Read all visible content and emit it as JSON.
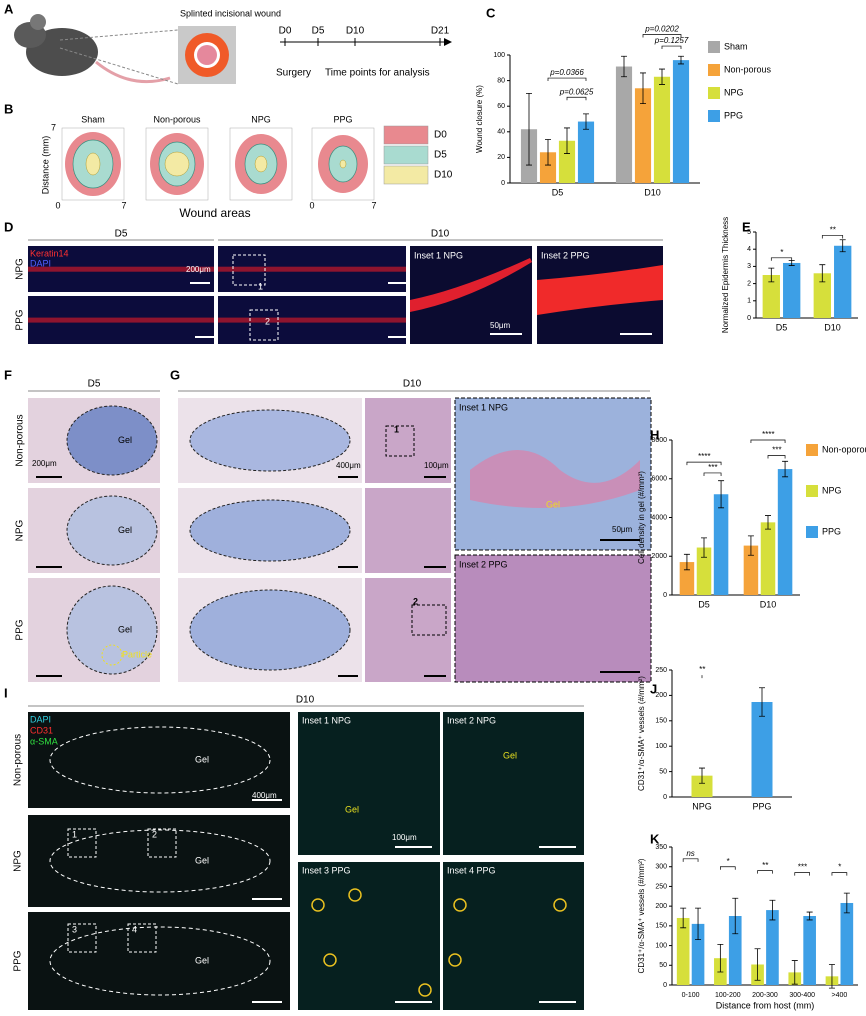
{
  "panel_labels": [
    "A",
    "B",
    "C",
    "D",
    "E",
    "F",
    "G",
    "H",
    "I",
    "J",
    "K"
  ],
  "panel_a": {
    "wound_label": "Splinted incisional wound",
    "timeline": [
      "D0",
      "D5",
      "D10",
      "D21"
    ],
    "surgery": "Surgery",
    "analysis": "Time points for analysis"
  },
  "panel_b": {
    "groups": [
      "Sham",
      "Non-porous",
      "NPG",
      "PPG"
    ],
    "y_label": "Distance (mm)",
    "x_label": "Wound areas",
    "axis_ticks": [
      0,
      7
    ],
    "legend": [
      "D0",
      "D5",
      "D10"
    ]
  },
  "panel_d": {
    "days": [
      "D5",
      "D10"
    ],
    "stains": [
      "Keratin14",
      "DAPI"
    ],
    "rows": [
      "NPG",
      "PPG"
    ],
    "boxes": [
      "1",
      "2"
    ],
    "insets": [
      "Inset 1  NPG",
      "Inset 2   PPG"
    ],
    "scale_bars": [
      "200μm",
      "50μm"
    ]
  },
  "panel_f": {
    "day": "D5",
    "rows": [
      "Non-porous",
      "NPG",
      "PPG"
    ],
    "gel": "Gel",
    "particle": "Particle",
    "scale_bar": "200μm"
  },
  "panel_g": {
    "day": "D10",
    "scale_bars": [
      "400μm",
      "100μm",
      "50μm"
    ],
    "insets": [
      "Inset 1  NPG",
      "Inset 2  PPG"
    ],
    "gel": "Gel",
    "boxes": [
      "1",
      "2"
    ]
  },
  "panel_i": {
    "day": "D10",
    "stains": [
      "DAPI",
      "CD31",
      "α-SMA"
    ],
    "rows": [
      "Non-porous",
      "NPG",
      "PPG"
    ],
    "gel": "Gel",
    "boxes": [
      "1",
      "2",
      "3",
      "4"
    ],
    "insets": [
      "Inset 1  NPG",
      "Inset 2  NPG",
      "Inset 3  PPG",
      "Inset 4  PPG"
    ],
    "scale_bars": [
      "400μm",
      "100μm"
    ]
  },
  "chart_data": [
    {
      "type": "bar",
      "y_label": "Wound closure (%)",
      "categories": [
        "D5",
        "D10"
      ],
      "series": [
        {
          "name": "Sham",
          "color": "#a8a8a8",
          "values": [
            42,
            91
          ],
          "errors": [
            28,
            8
          ]
        },
        {
          "name": "Non-porous",
          "color": "#f5a33a",
          "values": [
            24,
            74
          ],
          "errors": [
            10,
            12
          ]
        },
        {
          "name": "NPG",
          "color": "#d6df3b",
          "values": [
            33,
            83
          ],
          "errors": [
            10,
            6
          ]
        },
        {
          "name": "PPG",
          "color": "#3d9fe6",
          "values": [
            48,
            96
          ],
          "errors": [
            6,
            3
          ]
        }
      ],
      "ylim": [
        0,
        100
      ],
      "yticks": [
        0,
        20,
        40,
        60,
        80,
        100
      ],
      "legend": "right",
      "annotations": [
        "p=0.0366",
        "p=0.0625",
        "p=0.0202",
        "p=0.1257"
      ]
    },
    {
      "type": "bar",
      "y_label": "Normalized Epidermis Thickness",
      "categories": [
        "D5",
        "D10"
      ],
      "series": [
        {
          "name": "NPG",
          "color": "#d6df3b",
          "values": [
            2.5,
            2.6
          ],
          "errors": [
            0.4,
            0.5
          ]
        },
        {
          "name": "PPG",
          "color": "#3d9fe6",
          "values": [
            3.2,
            4.2
          ],
          "errors": [
            0.15,
            0.35
          ]
        }
      ],
      "ylim": [
        0,
        5
      ],
      "yticks": [
        0,
        1,
        2,
        3,
        4,
        5
      ],
      "annotations": [
        "*",
        "**"
      ]
    },
    {
      "type": "bar",
      "y_label": "Cell density in gel (#/mm²)",
      "categories": [
        "D5",
        "D10"
      ],
      "series": [
        {
          "name": "Non-oporous",
          "color": "#f5a33a",
          "values": [
            1700,
            2550
          ],
          "errors": [
            400,
            500
          ]
        },
        {
          "name": "NPG",
          "color": "#d6df3b",
          "values": [
            2450,
            3750
          ],
          "errors": [
            500,
            350
          ]
        },
        {
          "name": "PPG",
          "color": "#3d9fe6",
          "values": [
            5200,
            6500
          ],
          "errors": [
            700,
            400
          ]
        }
      ],
      "ylim": [
        0,
        8000
      ],
      "yticks": [
        0,
        2000,
        4000,
        6000,
        8000
      ],
      "legend": "right",
      "annotations": [
        "****",
        "***",
        "****",
        "***"
      ]
    },
    {
      "type": "bar",
      "y_label": "CD31⁺/α-SMA⁺ vessels (#/mm²)",
      "categories": [
        "NPG",
        "PPG"
      ],
      "values": [
        42,
        187
      ],
      "errors": [
        15,
        28
      ],
      "colors": [
        "#d6df3b",
        "#3d9fe6"
      ],
      "ylim": [
        0,
        250
      ],
      "yticks": [
        0,
        50,
        100,
        150,
        200,
        250
      ],
      "annotations": [
        "**"
      ]
    },
    {
      "type": "bar",
      "y_label": "CD31⁺/α-SMA⁺ vessels (#/mm²)",
      "x_label": "Distance from host (mm)",
      "categories": [
        "0-100",
        "100-200",
        "200-300",
        "300-400",
        ">400"
      ],
      "series": [
        {
          "name": "NPG",
          "color": "#d6df3b",
          "values": [
            170,
            68,
            52,
            32,
            22
          ],
          "errors": [
            25,
            35,
            40,
            30,
            30
          ]
        },
        {
          "name": "PPG",
          "color": "#3d9fe6",
          "values": [
            155,
            175,
            190,
            175,
            208
          ],
          "errors": [
            40,
            45,
            25,
            10,
            25
          ]
        }
      ],
      "ylim": [
        0,
        350
      ],
      "yticks": [
        0,
        50,
        100,
        150,
        200,
        250,
        300,
        350
      ],
      "annotations": [
        "ns",
        "*",
        "**",
        "***",
        "*"
      ]
    }
  ]
}
